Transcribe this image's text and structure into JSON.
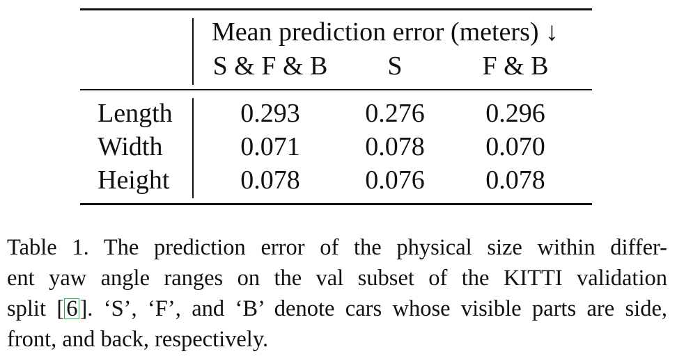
{
  "table": {
    "header_group": "Mean prediction error (meters) ↓",
    "columns": [
      "S & F & B",
      "S",
      "F & B"
    ],
    "rows": [
      {
        "label": "Length",
        "values": [
          "0.293",
          "0.276",
          "0.296"
        ]
      },
      {
        "label": "Width",
        "values": [
          "0.071",
          "0.078",
          "0.070"
        ]
      },
      {
        "label": "Height",
        "values": [
          "0.078",
          "0.076",
          "0.078"
        ]
      }
    ]
  },
  "caption": {
    "line1": "Table 1. The prediction error of the physical size within differ-",
    "line2": "ent yaw angle ranges on the val subset of the KITTI validation",
    "line3_pre": "split [",
    "citation": "6",
    "line3_post": "]. ‘S’, ‘F’, and ‘B’ denote cars whose visible parts are side,",
    "line4": "front, and back, respectively."
  }
}
